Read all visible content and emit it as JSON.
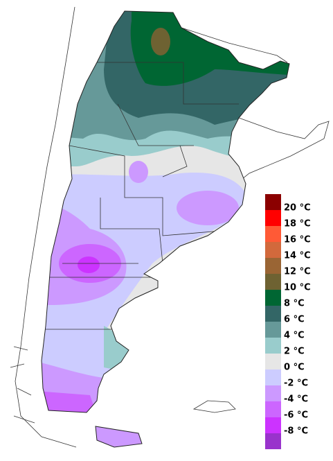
{
  "legend": {
    "labels": [
      "20 °C",
      "18 °C",
      "16 °C",
      "14 °C",
      "12 °C",
      "10 °C",
      "8 °C",
      "6 °C",
      "4 °C",
      "2 °C",
      "0 °C",
      "-2 °C",
      "-4 °C",
      "-6 °C",
      "-8 °C"
    ],
    "colors": [
      "#8b0000",
      "#ff0000",
      "#ff5a36",
      "#d2693c",
      "#9a6534",
      "#6e6232",
      "#006633",
      "#336666",
      "#669999",
      "#99cccc",
      "#e6e6e6",
      "#ccccff",
      "#cc99ff",
      "#cc66ff",
      "#cc33ff",
      "#9933cc"
    ]
  }
}
